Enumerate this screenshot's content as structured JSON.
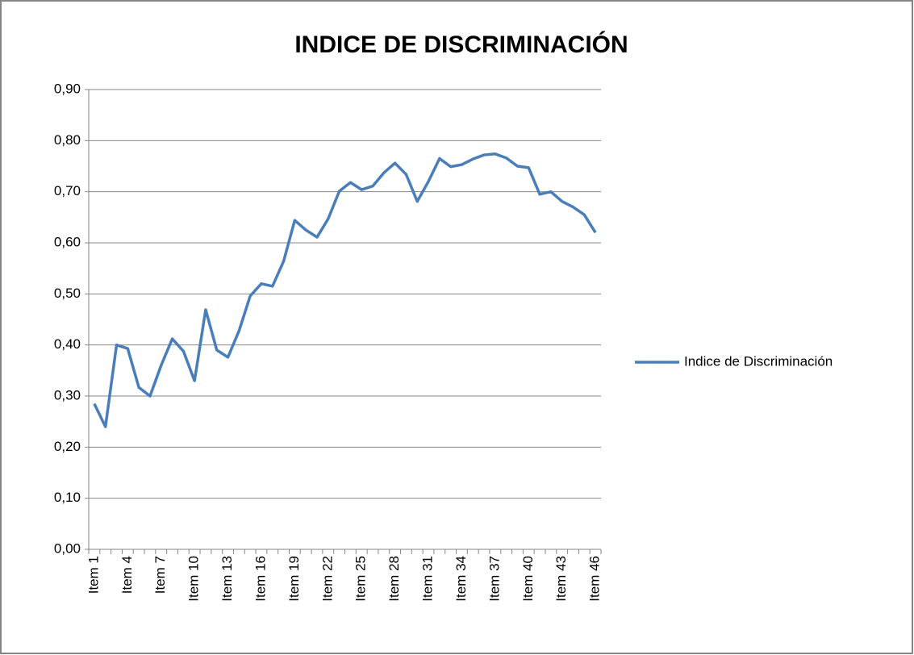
{
  "chart_data": {
    "type": "line",
    "title": "INDICE DE DISCRIMINACIÓN",
    "categories": [
      "Item 1",
      null,
      null,
      "Item 4",
      null,
      null,
      "Item 7",
      null,
      null,
      "Item 10",
      null,
      null,
      "Item 13",
      null,
      null,
      "Item 16",
      null,
      null,
      "Item 19",
      null,
      null,
      "Item 22",
      null,
      null,
      "Item 25",
      null,
      null,
      "Item 28",
      null,
      null,
      "Item 31",
      null,
      null,
      "Item 34",
      null,
      null,
      "Item 37",
      null,
      null,
      "Item 40",
      null,
      null,
      "Item 43",
      null,
      null,
      "Item 46"
    ],
    "series": [
      {
        "name": "Indice de Discriminación",
        "color": "#4a7ebb",
        "values": [
          0.285,
          0.24,
          0.4,
          0.393,
          0.317,
          0.3,
          0.36,
          0.412,
          0.388,
          0.33,
          0.469,
          0.39,
          0.376,
          0.428,
          0.496,
          0.52,
          0.515,
          0.564,
          0.644,
          0.625,
          0.611,
          0.647,
          0.701,
          0.718,
          0.704,
          0.711,
          0.737,
          0.756,
          0.734,
          0.681,
          0.72,
          0.765,
          0.749,
          0.753,
          0.764,
          0.772,
          0.774,
          0.766,
          0.75,
          0.747,
          0.695,
          0.7,
          0.681,
          0.67,
          0.655,
          0.62
        ]
      }
    ],
    "ylim": [
      0,
      0.9
    ],
    "yticks": [
      {
        "value": 0,
        "label": "0,00"
      },
      {
        "value": 0.1,
        "label": "0,10"
      },
      {
        "value": 0.2,
        "label": "0,20"
      },
      {
        "value": 0.3,
        "label": "0,30"
      },
      {
        "value": 0.4,
        "label": "0,40"
      },
      {
        "value": 0.5,
        "label": "0,50"
      },
      {
        "value": 0.6,
        "label": "0,60"
      },
      {
        "value": 0.7,
        "label": "0,70"
      },
      {
        "value": 0.8,
        "label": "0,80"
      },
      {
        "value": 0.9,
        "label": "0,90"
      }
    ],
    "grid": true,
    "legend": "right"
  }
}
